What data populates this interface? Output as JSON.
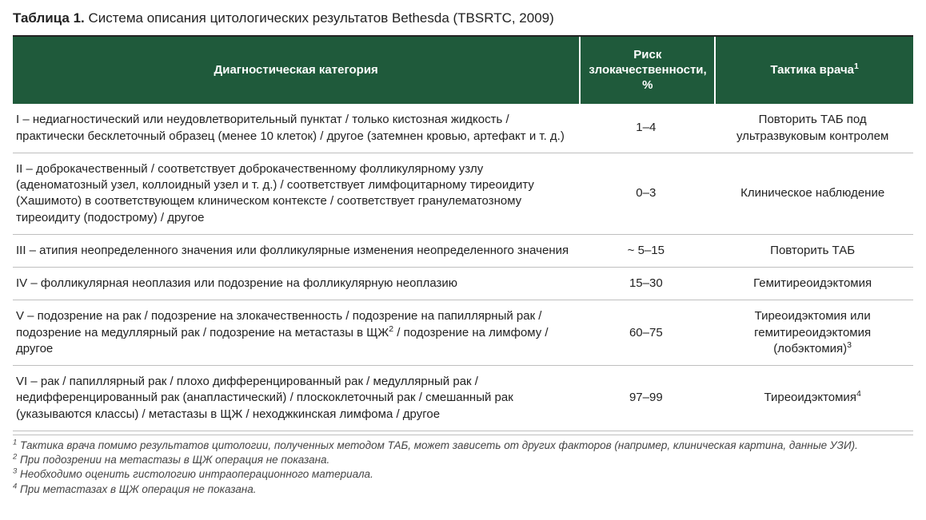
{
  "title": {
    "label": "Таблица 1.",
    "text": "Система описания цитологических результатов Bethesda (TBSRTC, 2009)"
  },
  "colors": {
    "header_bg": "#1f5a3b",
    "header_fg": "#ffffff",
    "rule": "#bfbfbf",
    "text": "#222222",
    "footnote": "#444444"
  },
  "table": {
    "columns": [
      {
        "key": "diag",
        "label": "Диагностическая категория",
        "width_pct": 63,
        "align": "left"
      },
      {
        "key": "risk",
        "label": "Риск злокачественности, %",
        "width_pct": 15,
        "align": "center"
      },
      {
        "key": "tactic",
        "label_html": "Тактика врача<sup>1</sup>",
        "width_pct": 22,
        "align": "center"
      }
    ],
    "rows": [
      {
        "diag": "I – недиагностический или неудовлетворительный пунктат / только кистозная жидкость / практически бесклеточный образец (менее 10 клеток) / другое (затемнен кровью, артефакт и т. д.)",
        "risk": "1–4",
        "tactic": "Повторить ТАБ под ультразвуковым контролем"
      },
      {
        "diag": "II – доброкачественный / соответствует доброкачественному фолликулярному узлу (аденоматозный узел, коллоидный узел и т. д.) / соответствует лимфоцитарному тиреоидиту (Хашимото) в соответствующем клиническом контексте / соответствует гранулематозному тиреоидиту (подострому) / другое",
        "risk": "0–3",
        "tactic": "Клиническое наблюдение"
      },
      {
        "diag": "III – атипия неопределенного значения или фолликулярные изменения неопределенного значения",
        "risk": "~ 5–15",
        "tactic": "Повторить ТАБ"
      },
      {
        "diag": "IV – фолликулярная неоплазия или подозрение на фолликулярную неоплазию",
        "risk": "15–30",
        "tactic": "Гемитиреоидэктомия"
      },
      {
        "diag_html": "V – подозрение на рак / подозрение на злокачественность / подозрение на папиллярный рак / подозрение на медуллярный рак / подозрение на метастазы в ЩЖ<sup>2</sup> / подозрение на лимфому / другое",
        "risk": "60–75",
        "tactic_html": "Тиреоидэктомия или гемитиреоидэктомия (лобэктомия)<sup>3</sup>"
      },
      {
        "diag": "VI – рак / папиллярный рак / плохо дифференцированный рак / медуллярный рак / недифференцированный рак (анапластический) / плоскоклеточный рак / смешанный рак (указываются классы) / метастазы в ЩЖ / неходжкинская лимфома / другое",
        "risk": "97–99",
        "tactic_html": "Тиреоидэктомия<sup>4</sup>"
      }
    ]
  },
  "footnotes": [
    "Тактика врача помимо результатов цитологии, полученных методом ТАБ, может зависеть от других факторов (например, клиническая картина, данные УЗИ).",
    "При подозрении на метастазы в ЩЖ операция не показана.",
    "Необходимо оценить гистологию интраоперационного материала.",
    "При метастазах в ЩЖ операция не показана."
  ]
}
